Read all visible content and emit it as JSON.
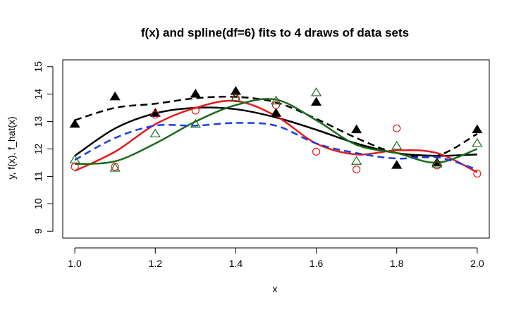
{
  "chart_data": {
    "type": "scatter",
    "title": "f(x) and spline(df=6) fits to 4 draws of data sets",
    "xlabel": "x",
    "ylabel": "y, f(x), f_hat(x)",
    "xlim": [
      0.97,
      2.03
    ],
    "ylim": [
      8.75,
      15.25
    ],
    "x_ticks": [
      1.0,
      1.2,
      1.4,
      1.6,
      1.8,
      2.0
    ],
    "x_tick_labels": [
      "1.0",
      "1.2",
      "1.4",
      "1.6",
      "1.8",
      "2.0"
    ],
    "y_ticks": [
      9,
      10,
      11,
      12,
      13,
      14,
      15
    ],
    "y_tick_labels": [
      "9",
      "10",
      "11",
      "12",
      "13",
      "14",
      "15"
    ],
    "grid": false,
    "points": [
      {
        "marker": "filled-triangle",
        "color": "#000000",
        "x": [
          1.0,
          1.1,
          1.2,
          1.3,
          1.4,
          1.5,
          1.6,
          1.7,
          1.8,
          1.9,
          2.0
        ],
        "y": [
          12.9,
          13.9,
          13.3,
          14.0,
          14.1,
          13.3,
          13.7,
          12.7,
          11.4,
          11.5,
          12.7
        ]
      },
      {
        "marker": "open-circle",
        "color": "#e31a1c",
        "x": [
          1.0,
          1.1,
          1.2,
          1.3,
          1.4,
          1.5,
          1.6,
          1.7,
          1.8,
          1.9,
          2.0
        ],
        "y": [
          11.35,
          11.35,
          13.25,
          13.4,
          13.85,
          13.6,
          11.9,
          11.25,
          12.75,
          11.4,
          11.1
        ]
      },
      {
        "marker": "open-triangle",
        "color": "#1a6b1a",
        "x": [
          1.0,
          1.1,
          1.2,
          1.3,
          1.4,
          1.5,
          1.6,
          1.7,
          1.8,
          1.9,
          2.0
        ],
        "y": [
          11.6,
          11.3,
          12.55,
          12.9,
          13.85,
          13.75,
          14.05,
          11.55,
          12.1,
          11.45,
          12.2
        ]
      }
    ],
    "lines": [
      {
        "style": "solid",
        "color": "#000000",
        "x": [
          1.0,
          1.1,
          1.2,
          1.3,
          1.4,
          1.5,
          1.6,
          1.7,
          1.8,
          1.9,
          2.0
        ],
        "y": [
          11.75,
          12.75,
          13.3,
          13.5,
          13.45,
          13.15,
          12.7,
          12.2,
          11.85,
          11.75,
          11.8
        ]
      },
      {
        "style": "dashed",
        "color": "#000000",
        "x": [
          1.0,
          1.1,
          1.2,
          1.3,
          1.4,
          1.5,
          1.6,
          1.7,
          1.8,
          1.9,
          2.0
        ],
        "y": [
          13.05,
          13.5,
          13.65,
          13.85,
          13.9,
          13.7,
          13.1,
          12.4,
          11.85,
          11.75,
          12.55
        ]
      },
      {
        "style": "solid",
        "color": "#e31a1c",
        "x": [
          1.0,
          1.1,
          1.2,
          1.3,
          1.4,
          1.5,
          1.6,
          1.7,
          1.8,
          1.9,
          2.0
        ],
        "y": [
          11.2,
          11.9,
          12.9,
          13.5,
          13.75,
          13.2,
          12.2,
          11.8,
          11.95,
          11.85,
          11.15
        ]
      },
      {
        "style": "solid",
        "color": "#1a6b1a",
        "x": [
          1.0,
          1.1,
          1.2,
          1.3,
          1.4,
          1.5,
          1.6,
          1.7,
          1.8,
          1.9,
          2.0
        ],
        "y": [
          11.45,
          11.55,
          12.2,
          13.0,
          13.6,
          13.8,
          13.05,
          12.15,
          11.85,
          11.5,
          12.0
        ]
      },
      {
        "style": "dashed",
        "color": "#1a3ee6",
        "x": [
          1.0,
          1.1,
          1.2,
          1.3,
          1.4,
          1.5,
          1.6,
          1.7,
          1.8,
          1.9,
          2.0
        ],
        "y": [
          11.6,
          12.4,
          12.85,
          12.85,
          12.95,
          12.85,
          12.2,
          11.85,
          11.65,
          11.7,
          11.25
        ]
      }
    ]
  }
}
